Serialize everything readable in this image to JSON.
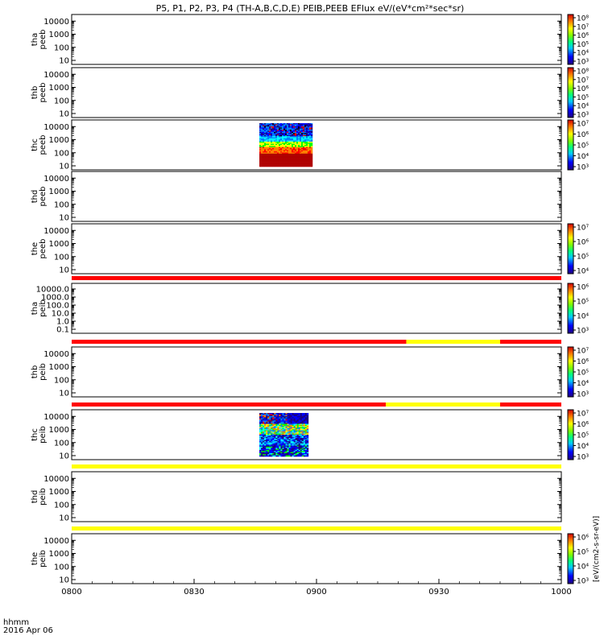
{
  "title": "P5, P1, P2, P3, P4 (TH-A,B,C,D,E) PEIB,PEEB EFlux eV/(eV*cm²*sec*sr)",
  "footer": {
    "time_unit_label": "hhmm",
    "date_label": "2016 Apr 06"
  },
  "chart_data": {
    "type": "heatmap",
    "x_range": [
      "0800",
      "1000"
    ],
    "x_ticks": [
      "0800",
      "0830",
      "0900",
      "0930",
      "1000"
    ],
    "y_scale": "log",
    "colors": {
      "flag_red": "#ff0000",
      "flag_yellow": "#ffff00"
    },
    "panels": [
      {
        "label1": "tha",
        "label2": "peeb",
        "y_ticks": [
          "10",
          "100",
          "1000",
          "10000"
        ],
        "colorbar": {
          "ticks": [
            "10³",
            "10⁴",
            "10⁵",
            "10⁶",
            "10⁷",
            "10⁸"
          ],
          "label": ""
        },
        "data_blocks": []
      },
      {
        "label1": "thb",
        "label2": "peeb",
        "y_ticks": [
          "10",
          "100",
          "1000",
          "10000"
        ],
        "colorbar": {
          "ticks": [
            "10³",
            "10⁴",
            "10⁵",
            "10⁶",
            "10⁷",
            "10⁸"
          ],
          "label": ""
        },
        "data_blocks": []
      },
      {
        "label1": "thc",
        "label2": "peeb",
        "y_ticks": [
          "10",
          "100",
          "1000",
          "10000"
        ],
        "colorbar": {
          "ticks": [
            "10³",
            "10⁴",
            "10⁵",
            "10⁶",
            "10⁷"
          ],
          "label": ""
        },
        "data_blocks": [
          {
            "t_start": "0846",
            "t_end": "0859",
            "style": "peeb"
          }
        ]
      },
      {
        "label1": "thd",
        "label2": "peeb",
        "y_ticks": [
          "10",
          "100",
          "1000",
          "10000"
        ],
        "colorbar": null,
        "data_blocks": []
      },
      {
        "label1": "the",
        "label2": "peeb",
        "y_ticks": [
          "10",
          "100",
          "1000",
          "10000"
        ],
        "colorbar": {
          "ticks": [
            "10⁴",
            "10⁵",
            "10⁶",
            "10⁷"
          ],
          "label": ""
        },
        "data_blocks": []
      },
      {
        "label1": "tha",
        "label2": "peib",
        "y_ticks": [
          "0.1",
          "1.0",
          "10.0",
          "100.0",
          "1000.0",
          "10000.0"
        ],
        "colorbar": {
          "ticks": [
            "10³",
            "10⁴",
            "10⁵",
            "10⁶"
          ],
          "label": ""
        },
        "data_blocks": []
      },
      {
        "label1": "thb",
        "label2": "peib",
        "y_ticks": [
          "10",
          "100",
          "1000",
          "10000"
        ],
        "colorbar": {
          "ticks": [
            "10³",
            "10⁴",
            "10⁵",
            "10⁶",
            "10⁷"
          ],
          "label": ""
        },
        "data_blocks": []
      },
      {
        "label1": "thc",
        "label2": "peib",
        "y_ticks": [
          "10",
          "100",
          "1000",
          "10000"
        ],
        "colorbar": {
          "ticks": [
            "10³",
            "10⁴",
            "10⁵",
            "10⁶",
            "10⁷"
          ],
          "label": ""
        },
        "data_blocks": [
          {
            "t_start": "0846",
            "t_end": "0858",
            "style": "peib"
          }
        ]
      },
      {
        "label1": "thd",
        "label2": "peib",
        "y_ticks": [
          "10",
          "100",
          "1000",
          "10000"
        ],
        "colorbar": null,
        "data_blocks": []
      },
      {
        "label1": "the",
        "label2": "peib",
        "y_ticks": [
          "10",
          "100",
          "1000",
          "10000"
        ],
        "colorbar": {
          "ticks": [
            "10³",
            "10⁴",
            "10⁵",
            "10⁶"
          ],
          "label": "[eV/(cm2-s-sr-eV)]"
        },
        "data_blocks": []
      }
    ],
    "flag_bars": [
      {
        "above_panel": 5,
        "segments": [
          {
            "t_start": "0800",
            "t_end": "1000",
            "color": "red"
          }
        ]
      },
      {
        "above_panel": 6,
        "segments": [
          {
            "t_start": "0800",
            "t_end": "0922",
            "color": "red"
          },
          {
            "t_start": "0922",
            "t_end": "0945",
            "color": "yellow"
          },
          {
            "t_start": "0945",
            "t_end": "1000",
            "color": "red"
          }
        ]
      },
      {
        "above_panel": 7,
        "segments": [
          {
            "t_start": "0800",
            "t_end": "0917",
            "color": "red"
          },
          {
            "t_start": "0917",
            "t_end": "0945",
            "color": "yellow"
          },
          {
            "t_start": "0945",
            "t_end": "1000",
            "color": "red"
          }
        ]
      },
      {
        "above_panel": 8,
        "segments": [
          {
            "t_start": "0800",
            "t_end": "1000",
            "color": "yellow"
          }
        ]
      },
      {
        "above_panel": 9,
        "segments": [
          {
            "t_start": "0800",
            "t_end": "1000",
            "color": "yellow"
          }
        ]
      }
    ]
  }
}
